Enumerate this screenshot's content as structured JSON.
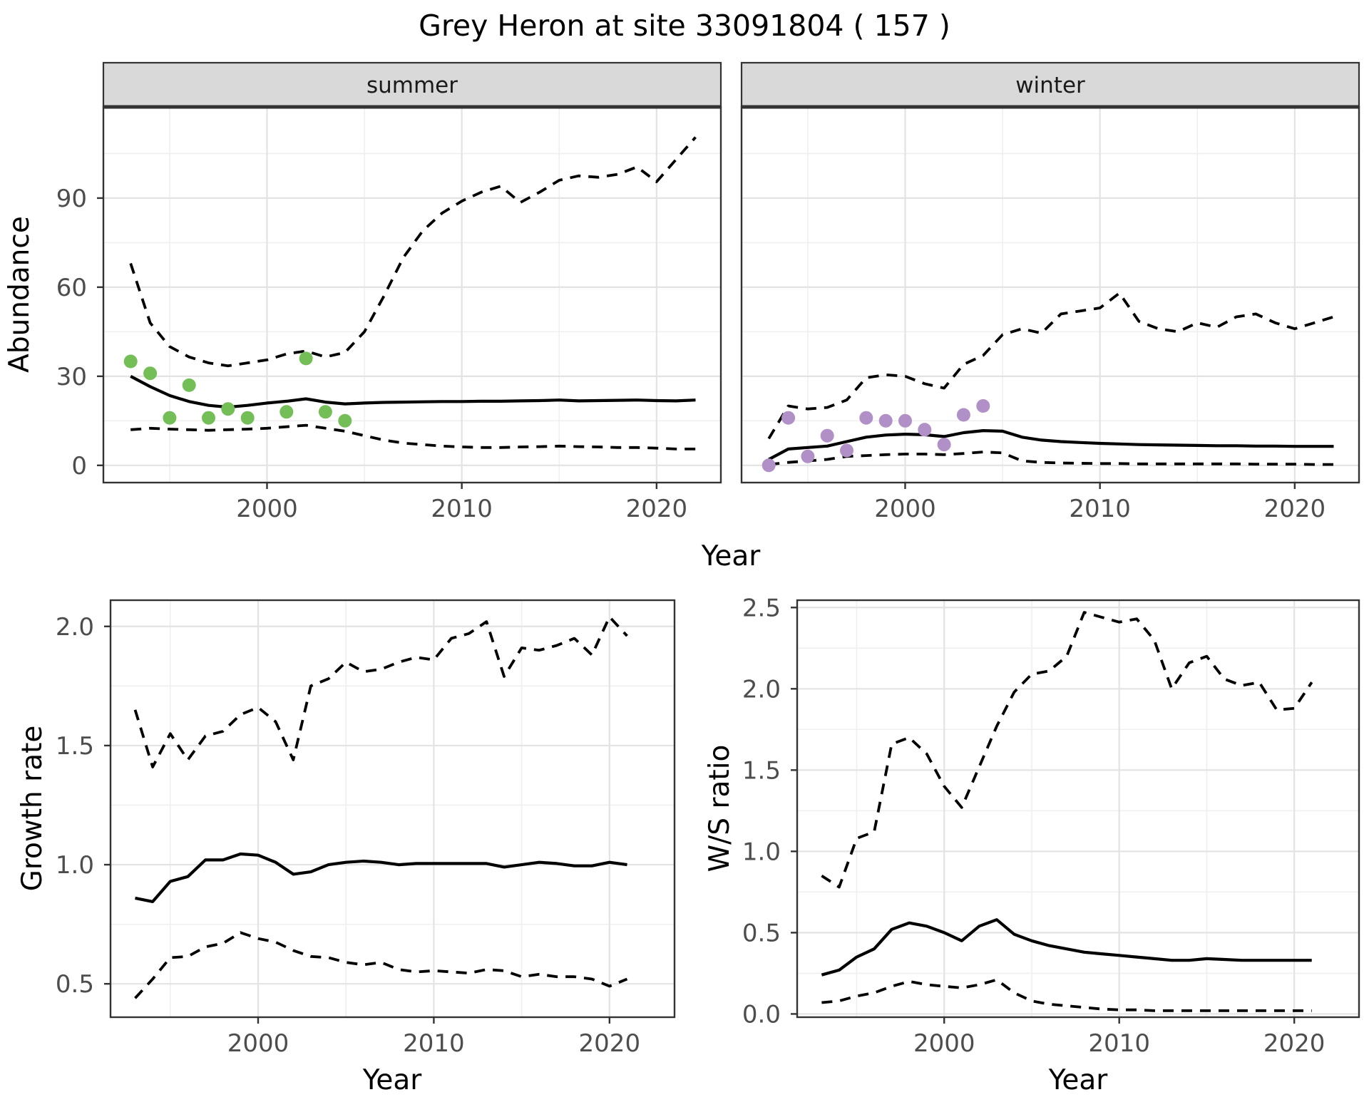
{
  "title": "Grey Heron at site 33091804 ( 157 )",
  "colors": {
    "median_line": "#000000",
    "ci_line": "#000000",
    "observed_summer": "#74BE58",
    "observed_winter": "#B18FC7",
    "strip_background": "#D9D9D9",
    "panel_border": "#333333",
    "grid_major": "#E3E3E3",
    "grid_minor": "#EFEFEF",
    "tick_label": "#4D4D4D"
  },
  "chart_data": [
    {
      "id": "abundance-summer",
      "type": "line",
      "facet": "summer",
      "ylabel": "Abundance",
      "xlabel": "Year",
      "xlim": [
        1991.6,
        2023.3
      ],
      "ylim": [
        -5.8,
        120.7
      ],
      "grid": true,
      "legend": "none",
      "xticks": {
        "major": [
          2000,
          2010,
          2020
        ],
        "minor": [
          1995,
          2005,
          2015
        ],
        "labels": [
          "2000",
          "2010",
          "2020"
        ]
      },
      "yticks": {
        "major": [
          0,
          30,
          60,
          90
        ],
        "minor": [
          15,
          45,
          75,
          105
        ],
        "labels": [
          "0",
          "30",
          "60",
          "90"
        ]
      },
      "show_ytick_labels": true,
      "x": [
        1993,
        1994,
        1995,
        1996,
        1997,
        1998,
        1999,
        2000,
        2001,
        2002,
        2003,
        2004,
        2005,
        2006,
        2007,
        2008,
        2009,
        2010,
        2011,
        2012,
        2013,
        2014,
        2015,
        2016,
        2017,
        2018,
        2019,
        2020,
        2021,
        2022
      ],
      "series": [
        {
          "name": "upper-ci-dashed",
          "style": "dashed",
          "values": [
            68,
            48,
            40,
            36.5,
            34.5,
            33.5,
            34.5,
            35.5,
            37.5,
            38.5,
            36.5,
            38,
            45,
            57,
            70,
            79,
            85,
            89,
            92,
            94,
            88.5,
            92,
            96,
            97.5,
            97,
            98,
            100.5,
            95.5,
            103,
            110.5
          ]
        },
        {
          "name": "median-solid",
          "style": "solid",
          "values": [
            30,
            26.5,
            23.5,
            21.5,
            20.2,
            19.6,
            20.2,
            21,
            21.6,
            22.4,
            21.3,
            20.7,
            21,
            21.2,
            21.3,
            21.4,
            21.5,
            21.5,
            21.6,
            21.6,
            21.7,
            21.8,
            22,
            21.7,
            21.8,
            21.9,
            22,
            21.8,
            21.7,
            22
          ]
        },
        {
          "name": "lower-ci-dashed",
          "style": "dashed",
          "values": [
            12,
            12.5,
            12.2,
            12,
            11.8,
            12,
            12.2,
            12.5,
            13,
            13.5,
            12.5,
            11.5,
            10,
            8.5,
            7.5,
            7,
            6.5,
            6.2,
            6,
            6,
            6.2,
            6.3,
            6.5,
            6.3,
            6.2,
            6,
            6,
            5.8,
            5.5,
            5.5
          ]
        }
      ],
      "points": {
        "name": "observed-counts",
        "color": "#74BE58",
        "x": [
          1993,
          1994,
          1995,
          1996,
          1997,
          1998,
          1999,
          2001,
          2002,
          2003,
          2004
        ],
        "y": [
          35,
          31,
          16,
          27,
          16,
          19,
          16,
          18,
          36,
          18,
          15
        ]
      }
    },
    {
      "id": "abundance-winter",
      "type": "line",
      "facet": "winter",
      "ylabel": "Abundance",
      "xlabel": "Year",
      "xlim": [
        1991.6,
        2023.3
      ],
      "ylim": [
        -5.8,
        120.7
      ],
      "grid": true,
      "legend": "none",
      "xticks": {
        "major": [
          2000,
          2010,
          2020
        ],
        "minor": [
          1995,
          2005,
          2015
        ],
        "labels": [
          "2000",
          "2010",
          "2020"
        ]
      },
      "yticks": {
        "major": [
          0,
          30,
          60,
          90
        ],
        "minor": [
          15,
          45,
          75,
          105
        ],
        "labels": [
          "0",
          "30",
          "60",
          "90"
        ]
      },
      "show_ytick_labels": false,
      "x": [
        1993,
        1994,
        1995,
        1996,
        1997,
        1998,
        1999,
        2000,
        2001,
        2002,
        2003,
        2004,
        2005,
        2006,
        2007,
        2008,
        2009,
        2010,
        2011,
        2012,
        2013,
        2014,
        2015,
        2016,
        2017,
        2018,
        2019,
        2020,
        2021,
        2022
      ],
      "series": [
        {
          "name": "upper-ci-dashed",
          "style": "dashed",
          "values": [
            9,
            20,
            19,
            19.5,
            22,
            29.5,
            30.5,
            30,
            27.5,
            26,
            34,
            37,
            44,
            46,
            44.5,
            51,
            52,
            53,
            58,
            48.5,
            46,
            45,
            48,
            46.5,
            50,
            51,
            48,
            46,
            48,
            50
          ]
        },
        {
          "name": "median-solid",
          "style": "solid",
          "values": [
            2,
            5.5,
            6,
            6.5,
            8,
            9.5,
            10.2,
            10.5,
            10.3,
            9.7,
            11,
            11.7,
            11.5,
            9.5,
            8.5,
            8,
            7.7,
            7.4,
            7.2,
            7,
            6.9,
            6.8,
            6.7,
            6.6,
            6.6,
            6.5,
            6.5,
            6.4,
            6.4,
            6.4
          ]
        },
        {
          "name": "lower-ci-dashed",
          "style": "dashed",
          "values": [
            0.3,
            1,
            1.5,
            2,
            3,
            3.3,
            3.6,
            3.8,
            3.8,
            3.6,
            4,
            4.5,
            4.2,
            1.5,
            1,
            0.8,
            0.7,
            0.6,
            0.6,
            0.5,
            0.5,
            0.5,
            0.5,
            0.5,
            0.5,
            0.4,
            0.4,
            0.4,
            0.3,
            0.3
          ]
        }
      ],
      "points": {
        "name": "observed-counts",
        "color": "#B18FC7",
        "x": [
          1993,
          1994,
          1995,
          1996,
          1997,
          1998,
          1999,
          2000,
          2001,
          2002,
          2003,
          2004
        ],
        "y": [
          0,
          16,
          3,
          10,
          5,
          16,
          15,
          15,
          12,
          7,
          17,
          20
        ]
      }
    },
    {
      "id": "growth-rate",
      "type": "line",
      "facet": "",
      "ylabel": "Growth rate",
      "xlabel": "Year",
      "xlim": [
        1991.6,
        2023.7
      ],
      "ylim": [
        0.36,
        2.11
      ],
      "grid": true,
      "legend": "none",
      "xticks": {
        "major": [
          2000,
          2010,
          2020
        ],
        "minor": [
          1995,
          2005,
          2015
        ],
        "labels": [
          "2000",
          "2010",
          "2020"
        ]
      },
      "yticks": {
        "major": [
          0.5,
          1.0,
          1.5,
          2.0
        ],
        "minor": [
          0.75,
          1.25,
          1.75
        ],
        "labels": [
          "0.5",
          "1.0",
          "1.5",
          "2.0"
        ]
      },
      "show_ytick_labels": true,
      "x": [
        1993,
        1994,
        1995,
        1996,
        1997,
        1998,
        1999,
        2000,
        2001,
        2002,
        2003,
        2004,
        2005,
        2006,
        2007,
        2008,
        2009,
        2010,
        2011,
        2012,
        2013,
        2014,
        2015,
        2016,
        2017,
        2018,
        2019,
        2020,
        2021
      ],
      "series": [
        {
          "name": "upper-ci-dashed",
          "style": "dashed",
          "values": [
            1.65,
            1.41,
            1.55,
            1.44,
            1.54,
            1.56,
            1.63,
            1.66,
            1.6,
            1.44,
            1.75,
            1.78,
            1.85,
            1.81,
            1.82,
            1.85,
            1.87,
            1.86,
            1.95,
            1.97,
            2.02,
            1.79,
            1.91,
            1.9,
            1.92,
            1.95,
            1.88,
            2.04,
            1.96
          ]
        },
        {
          "name": "median-solid",
          "style": "solid",
          "values": [
            0.86,
            0.845,
            0.93,
            0.95,
            1.02,
            1.02,
            1.045,
            1.04,
            1.01,
            0.96,
            0.97,
            1.0,
            1.01,
            1.015,
            1.01,
            1.0,
            1.005,
            1.005,
            1.005,
            1.005,
            1.005,
            0.99,
            1.0,
            1.01,
            1.005,
            0.995,
            0.995,
            1.01,
            1.0
          ]
        },
        {
          "name": "lower-ci-dashed",
          "style": "dashed",
          "values": [
            0.44,
            0.52,
            0.61,
            0.615,
            0.655,
            0.67,
            0.715,
            0.69,
            0.675,
            0.64,
            0.615,
            0.61,
            0.59,
            0.58,
            0.59,
            0.56,
            0.55,
            0.555,
            0.55,
            0.545,
            0.56,
            0.555,
            0.53,
            0.54,
            0.53,
            0.53,
            0.52,
            0.49,
            0.52
          ]
        }
      ],
      "points": null
    },
    {
      "id": "ws-ratio",
      "type": "line",
      "facet": "",
      "ylabel": "W/S ratio",
      "xlabel": "Year",
      "xlim": [
        1991.6,
        2023.7
      ],
      "ylim": [
        -0.02,
        2.545
      ],
      "grid": true,
      "legend": "none",
      "xticks": {
        "major": [
          2000,
          2010,
          2020
        ],
        "minor": [
          1995,
          2005,
          2015
        ],
        "labels": [
          "2000",
          "2010",
          "2020"
        ]
      },
      "yticks": {
        "major": [
          0.0,
          0.5,
          1.0,
          1.5,
          2.0,
          2.5
        ],
        "minor": [
          0.25,
          0.75,
          1.25,
          1.75,
          2.25
        ],
        "labels": [
          "0.0",
          "0.5",
          "1.0",
          "1.5",
          "2.0",
          "2.5"
        ]
      },
      "show_ytick_labels": true,
      "x": [
        1993,
        1994,
        1995,
        1996,
        1997,
        1998,
        1999,
        2000,
        2001,
        2002,
        2003,
        2004,
        2005,
        2006,
        2007,
        2008,
        2009,
        2010,
        2011,
        2012,
        2013,
        2014,
        2015,
        2016,
        2017,
        2018,
        2019,
        2020,
        2021
      ],
      "series": [
        {
          "name": "upper-ci-dashed",
          "style": "dashed",
          "values": [
            0.85,
            0.78,
            1.08,
            1.12,
            1.66,
            1.7,
            1.6,
            1.4,
            1.27,
            1.52,
            1.77,
            1.98,
            2.09,
            2.11,
            2.2,
            2.47,
            2.44,
            2.41,
            2.43,
            2.3,
            2.0,
            2.16,
            2.2,
            2.06,
            2.02,
            2.04,
            1.87,
            1.88,
            2.04
          ]
        },
        {
          "name": "median-solid",
          "style": "solid",
          "values": [
            0.24,
            0.27,
            0.35,
            0.4,
            0.52,
            0.56,
            0.54,
            0.5,
            0.45,
            0.54,
            0.58,
            0.49,
            0.45,
            0.42,
            0.4,
            0.38,
            0.37,
            0.36,
            0.35,
            0.34,
            0.33,
            0.33,
            0.34,
            0.335,
            0.33,
            0.33,
            0.33,
            0.33,
            0.33
          ]
        },
        {
          "name": "lower-ci-dashed",
          "style": "dashed",
          "values": [
            0.07,
            0.08,
            0.11,
            0.13,
            0.17,
            0.2,
            0.18,
            0.17,
            0.16,
            0.18,
            0.21,
            0.13,
            0.08,
            0.06,
            0.05,
            0.04,
            0.03,
            0.025,
            0.025,
            0.02,
            0.02,
            0.02,
            0.02,
            0.02,
            0.02,
            0.02,
            0.02,
            0.02,
            0.02
          ]
        }
      ],
      "points": null
    }
  ]
}
